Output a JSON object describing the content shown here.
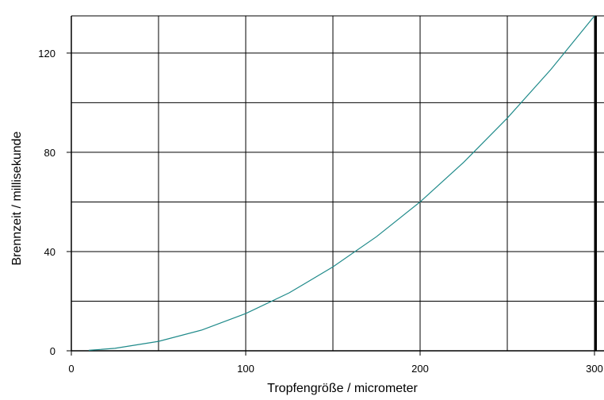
{
  "chart_data": {
    "type": "line",
    "title": "",
    "xlabel": "Tropfengröße / micrometer",
    "ylabel": "Brennzeit / millisekunde",
    "xlim": [
      0,
      300
    ],
    "ylim": [
      0,
      135
    ],
    "x_ticks": [
      0,
      100,
      200,
      300
    ],
    "x_tick_labels": [
      "0",
      "100",
      "200",
      "300"
    ],
    "y_ticks": [
      0,
      40,
      80,
      120
    ],
    "y_tick_labels": [
      "0",
      "40",
      "80",
      "120"
    ],
    "grid": true,
    "x_grid_lines": [
      50,
      100,
      150,
      200,
      250,
      300
    ],
    "y_grid_lines": [
      20,
      40,
      60,
      80,
      100,
      120
    ],
    "series": [
      {
        "color": "#1f8a8a",
        "x": [
          10,
          25,
          50,
          75,
          100,
          125,
          150,
          175,
          200,
          225,
          250,
          275,
          300
        ],
        "y": [
          0.2,
          1.0,
          3.8,
          8.4,
          15.0,
          23.4,
          33.8,
          46.0,
          60.0,
          76.0,
          93.8,
          113.4,
          135.0
        ]
      }
    ]
  }
}
